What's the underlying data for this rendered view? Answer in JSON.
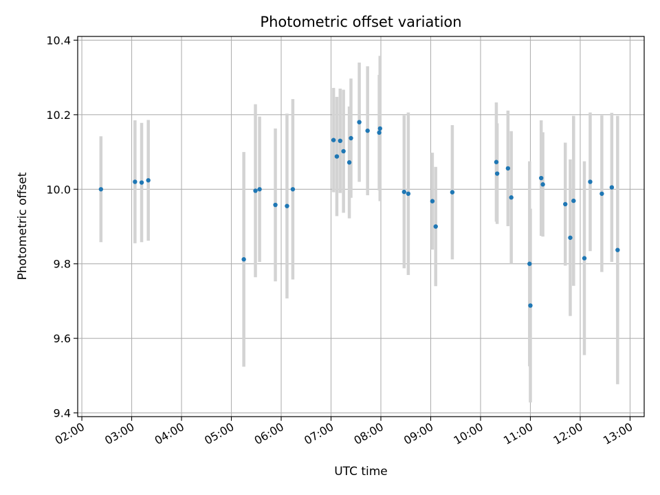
{
  "chart_data": {
    "type": "scatter",
    "title": "Photometric offset variation",
    "xlabel": "UTC time",
    "ylabel": "Photometric offset",
    "xlim": [
      "01:55",
      "13:17"
    ],
    "ylim": [
      9.39,
      10.41
    ],
    "grid": true,
    "x_ticks": [
      "02:00",
      "03:00",
      "04:00",
      "05:00",
      "06:00",
      "07:00",
      "08:00",
      "09:00",
      "10:00",
      "11:00",
      "12:00",
      "13:00"
    ],
    "y_ticks": [
      "9.4",
      "9.6",
      "9.8",
      "10.0",
      "10.2",
      "10.4"
    ],
    "colors": {
      "points": "#1f77b4",
      "errorbars": "#d3d3d3",
      "grid": "#b0b0b0"
    },
    "series": [
      {
        "x": [
          "02:23",
          "03:04",
          "03:12",
          "03:20",
          "05:15",
          "05:29",
          "05:34",
          "05:53",
          "06:07",
          "06:14",
          "07:03",
          "07:07",
          "07:11",
          "07:15",
          "07:22",
          "07:24",
          "07:34",
          "07:44",
          "07:58",
          "07:59",
          "08:28",
          "08:33",
          "09:02",
          "09:06",
          "09:26",
          "10:19",
          "10:20",
          "10:33",
          "10:37",
          "10:59",
          "11:00",
          "11:13",
          "11:15",
          "11:42",
          "11:48",
          "11:52",
          "12:05",
          "12:12",
          "12:26",
          "12:38",
          "12:45"
        ],
        "y": [
          10.0,
          10.02,
          10.018,
          10.024,
          9.812,
          9.996,
          10.0,
          9.958,
          9.955,
          10.0,
          10.132,
          10.088,
          10.13,
          10.102,
          10.072,
          10.137,
          10.18,
          10.157,
          10.152,
          10.163,
          9.993,
          9.988,
          9.968,
          9.9,
          9.992,
          10.073,
          10.042,
          10.056,
          9.978,
          9.8,
          9.688,
          10.03,
          10.013,
          9.96,
          9.87,
          9.969,
          9.815,
          10.02,
          9.988,
          10.005,
          9.837
        ],
        "yerr": [
          0.142,
          0.165,
          0.16,
          0.162,
          0.288,
          0.232,
          0.195,
          0.205,
          0.248,
          0.242,
          0.14,
          0.16,
          0.14,
          0.165,
          0.15,
          0.16,
          0.16,
          0.173,
          0.155,
          0.195,
          0.205,
          0.218,
          0.13,
          0.16,
          0.18,
          0.16,
          0.135,
          0.155,
          0.178,
          0.275,
          0.26,
          0.155,
          0.14,
          0.165,
          0.21,
          0.228,
          0.26,
          0.186,
          0.21,
          0.2,
          0.36
        ]
      }
    ]
  }
}
